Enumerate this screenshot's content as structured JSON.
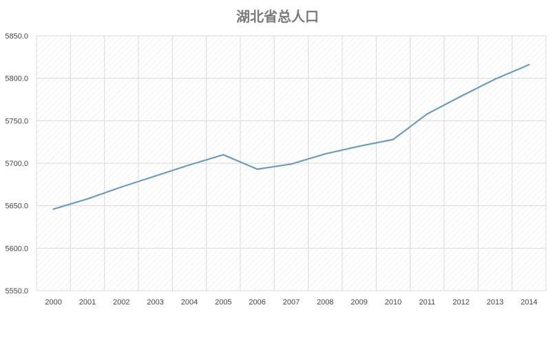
{
  "chart_data": {
    "type": "line",
    "title": "湖北省总人口",
    "xlabel": "",
    "ylabel": "",
    "categories": [
      "2000",
      "2001",
      "2002",
      "2003",
      "2004",
      "2005",
      "2006",
      "2007",
      "2008",
      "2009",
      "2010",
      "2011",
      "2012",
      "2013",
      "2014"
    ],
    "series": [
      {
        "values": [
          5646,
          5658,
          5672,
          5685,
          5698,
          5710,
          5693,
          5699,
          5711,
          5720,
          5728,
          5758,
          5779,
          5799,
          5816
        ]
      }
    ],
    "ylim": [
      5550,
      5850
    ],
    "yticks": [
      "5550.0",
      "5600.0",
      "5650.0",
      "5700.0",
      "5750.0",
      "5800.0",
      "5850.0"
    ],
    "grid": true,
    "line_color": "#6b9cb9",
    "grid_color": "#d9d9d9"
  }
}
